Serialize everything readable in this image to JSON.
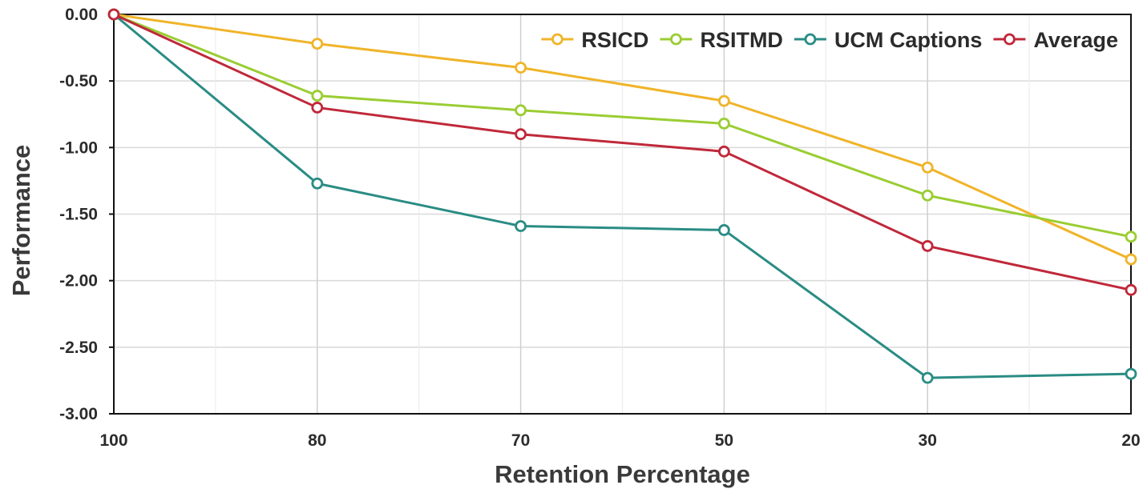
{
  "chart_data": {
    "type": "line",
    "title": "",
    "xlabel": "Retention Percentage",
    "ylabel": "Performance",
    "categories": [
      "100",
      "80",
      "70",
      "50",
      "30",
      "20"
    ],
    "ylim": [
      -3.0,
      0.0
    ],
    "yticks": [
      "0.00",
      "-0.50",
      "-1.00",
      "-1.50",
      "-2.00",
      "-2.50",
      "-3.00"
    ],
    "ytick_values": [
      0.0,
      -0.5,
      -1.0,
      -1.5,
      -2.0,
      -2.5,
      -3.0
    ],
    "grid": true,
    "legend_position": "top-right",
    "series": [
      {
        "name": "RSICD",
        "color": "#f0b429",
        "values": [
          0.0,
          -0.22,
          -0.4,
          -0.65,
          -1.15,
          -1.84
        ]
      },
      {
        "name": "RSITMD",
        "color": "#9acd32",
        "values": [
          0.0,
          -0.61,
          -0.72,
          -0.82,
          -1.36,
          -1.67
        ]
      },
      {
        "name": "UCM Captions",
        "color": "#2a8c84",
        "values": [
          0.0,
          -1.27,
          -1.59,
          -1.62,
          -2.73,
          -2.7
        ]
      },
      {
        "name": "Average",
        "color": "#c0283a",
        "values": [
          0.0,
          -0.7,
          -0.9,
          -1.03,
          -1.74,
          -2.07
        ]
      }
    ]
  }
}
